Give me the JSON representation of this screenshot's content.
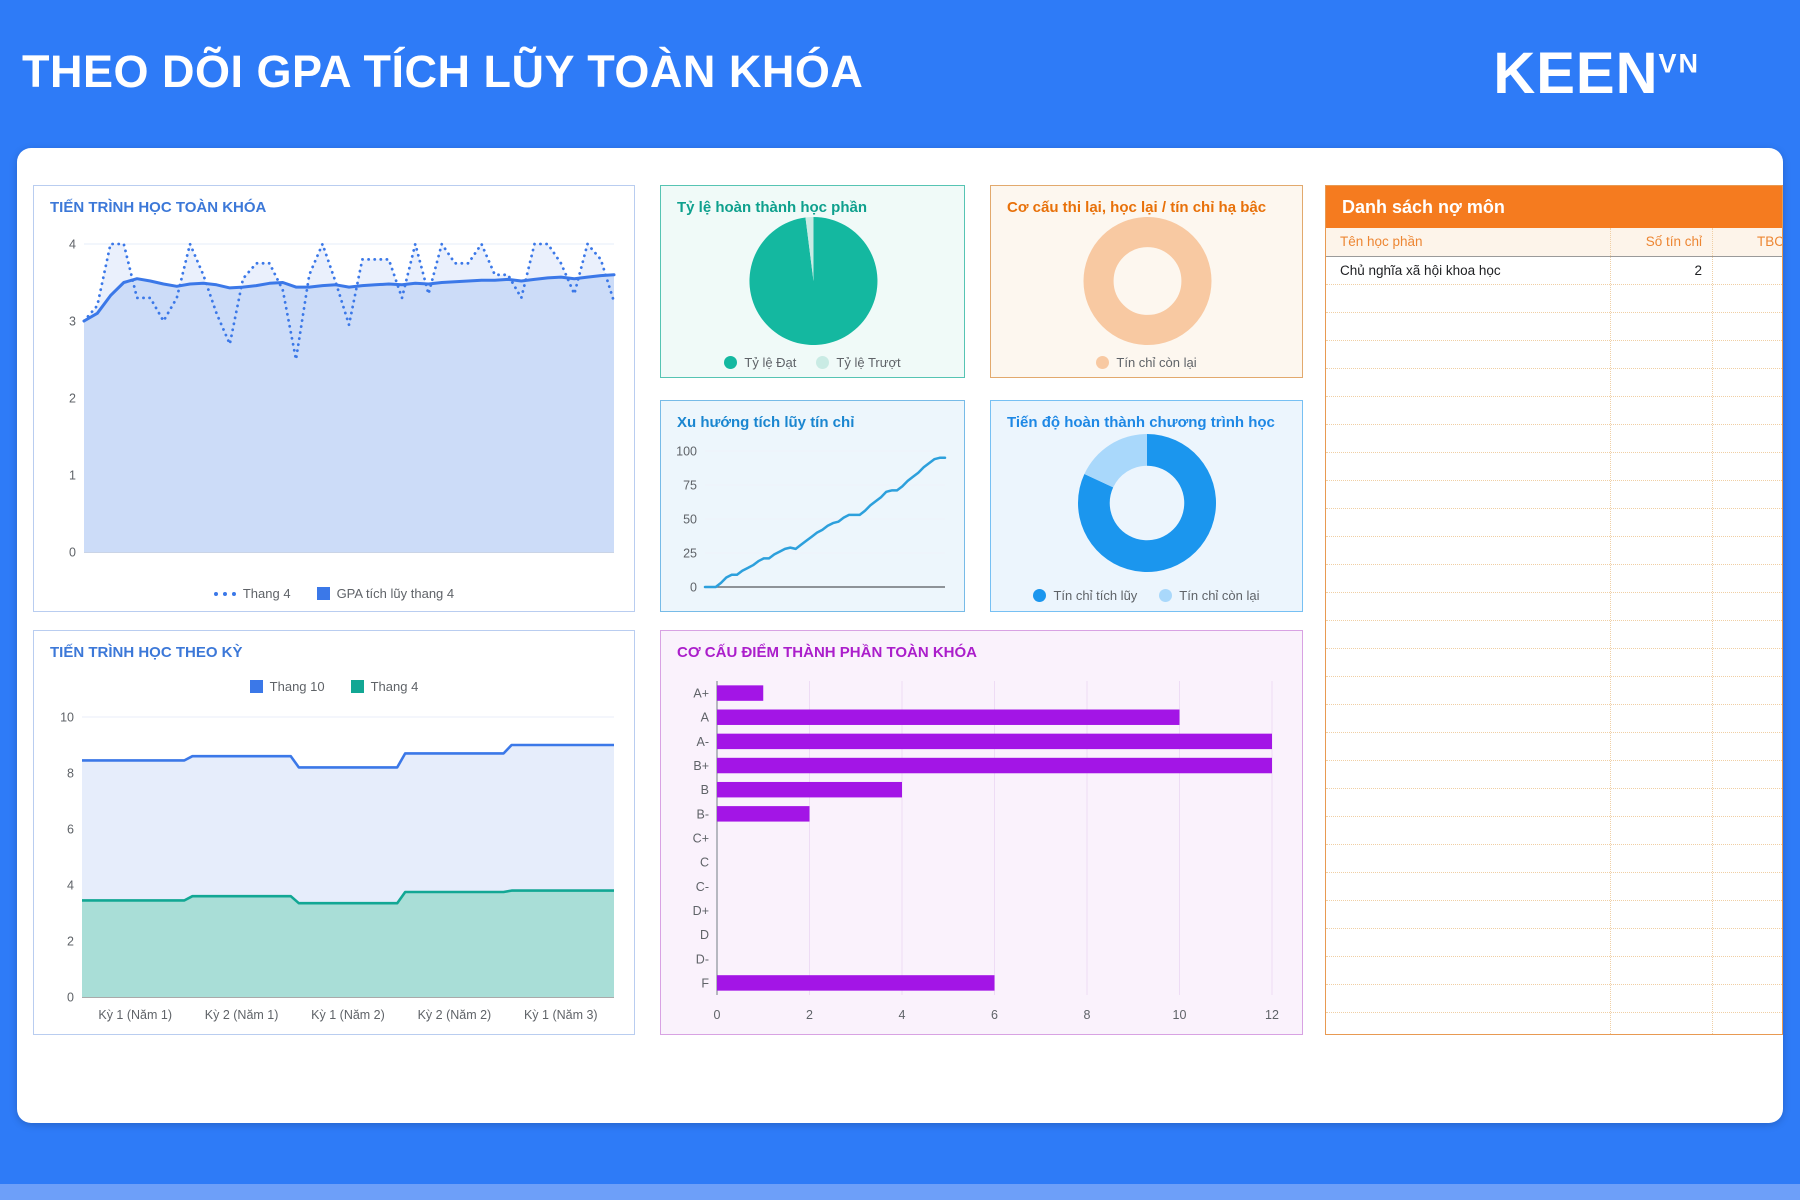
{
  "header": {
    "title": "THEO DÕI GPA TÍCH LŨY TOÀN KHÓA",
    "brand": "KEEN",
    "brand_suffix": "VN"
  },
  "colors": {
    "background": "#2e7bf7",
    "card": "#ffffff",
    "accent_blue": "#3b78e8",
    "accent_teal": "#14b8a0",
    "accent_orange": "#f57b1f",
    "accent_light_blue": "#2da0dc",
    "accent_donut_blue": "#1b96ee",
    "accent_purple": "#a315e6"
  },
  "debt_table": {
    "title": "Danh sách nợ môn",
    "columns": [
      "Tên học phần",
      "Số tín chỉ",
      "TBC"
    ],
    "rows": [
      {
        "name": "Chủ nghĩa xã hội khoa học",
        "credits": "2",
        "tbc": ""
      }
    ],
    "empty_row_count": 28
  },
  "chart_data": [
    {
      "id": "gpa_total",
      "type": "line",
      "title": "TIẾN TRÌNH HỌC TOÀN KHÓA",
      "ylim": [
        0,
        4
      ],
      "yticks": [
        0,
        1,
        2,
        3,
        4
      ],
      "grid": true,
      "legend_position": "bottom",
      "series": [
        {
          "name": "Thang 4",
          "style": "dotted",
          "color": "#3b78e8",
          "fill": "#dfe8fa",
          "fill_opacity": 0.65,
          "values": [
            3.0,
            3.2,
            4.0,
            4.0,
            3.3,
            3.3,
            3.0,
            3.3,
            4.0,
            3.6,
            3.1,
            2.7,
            3.55,
            3.75,
            3.75,
            3.4,
            2.5,
            3.6,
            4.0,
            3.5,
            2.95,
            3.8,
            3.8,
            3.8,
            3.3,
            4.0,
            3.35,
            4.0,
            3.75,
            3.75,
            4.0,
            3.6,
            3.6,
            3.3,
            4.0,
            4.0,
            3.75,
            3.35,
            4.0,
            3.8,
            3.25
          ]
        },
        {
          "name": "GPA tích lũy thang 4",
          "style": "solid",
          "color": "#3b78e8",
          "fill": "#ccdcf8",
          "fill_opacity": 1,
          "values": [
            3.0,
            3.1,
            3.33,
            3.5,
            3.55,
            3.52,
            3.48,
            3.45,
            3.48,
            3.49,
            3.47,
            3.43,
            3.44,
            3.46,
            3.49,
            3.5,
            3.44,
            3.44,
            3.46,
            3.47,
            3.44,
            3.46,
            3.47,
            3.48,
            3.47,
            3.49,
            3.48,
            3.5,
            3.51,
            3.52,
            3.53,
            3.53,
            3.54,
            3.52,
            3.54,
            3.56,
            3.57,
            3.55,
            3.57,
            3.59,
            3.6
          ]
        }
      ]
    },
    {
      "id": "completion_pie",
      "type": "pie",
      "title": "Tỷ lệ hoàn thành học phần",
      "legend_position": "bottom",
      "slices": [
        {
          "label": "Tỷ lệ Đạt",
          "value": 98,
          "color": "#14b8a0"
        },
        {
          "label": "Tỷ lệ Trượt",
          "value": 2,
          "color": "#c9ebe4"
        }
      ]
    },
    {
      "id": "retake_donut",
      "type": "donut",
      "title": "Cơ cấu thi lại, học lại / tín chỉ hạ bậc",
      "legend_position": "bottom",
      "slices": [
        {
          "label": "Tín chỉ còn lại",
          "value": 100,
          "color": "#f8c9a2"
        }
      ]
    },
    {
      "id": "credit_trend",
      "type": "line",
      "title": "Xu hướng tích lũy tín chỉ",
      "ylim": [
        0,
        100
      ],
      "yticks": [
        0,
        25,
        50,
        75,
        100
      ],
      "grid": true,
      "series": [
        {
          "name": "Tín chỉ tích lũy",
          "style": "solid",
          "color": "#2da0dc",
          "width": 2.5,
          "values": [
            0,
            0,
            0,
            3,
            7,
            9,
            9,
            12,
            14,
            16,
            19,
            21,
            21,
            24,
            26,
            28,
            29,
            28,
            31,
            34,
            37,
            40,
            42,
            45,
            47,
            48,
            51,
            53,
            53,
            53,
            56,
            60,
            63,
            66,
            70,
            71,
            71,
            74,
            78,
            81,
            84,
            88,
            91,
            94,
            95,
            95
          ]
        }
      ]
    },
    {
      "id": "program_progress",
      "type": "donut",
      "title": "Tiến độ hoàn thành chương trình học",
      "legend_position": "bottom",
      "slices": [
        {
          "label": "Tín chỉ tích lũy",
          "value": 95,
          "color": "#1b96ee"
        },
        {
          "label": "Tín chỉ còn lại",
          "value": 21,
          "color": "#a9d8fb"
        }
      ]
    },
    {
      "id": "semester_progress",
      "type": "step-area",
      "title": "TIẾN TRÌNH HỌC THEO KỲ",
      "categories": [
        "Kỳ 1 (Năm 1)",
        "Kỳ 2 (Năm 1)",
        "Kỳ 1 (Năm 2)",
        "Kỳ 2 (Năm 2)",
        "Kỳ 1 (Năm 3)"
      ],
      "ylim": [
        0,
        10
      ],
      "yticks": [
        0,
        2,
        4,
        6,
        8,
        10
      ],
      "legend_position": "top",
      "series": [
        {
          "name": "Thang 10",
          "color": "#3b78e8",
          "fill": "#e6edfb",
          "values": [
            8.45,
            8.6,
            8.2,
            8.7,
            9.0
          ]
        },
        {
          "name": "Thang 4",
          "color": "#12a794",
          "fill": "#a9ded7",
          "values": [
            3.45,
            3.6,
            3.35,
            3.75,
            3.8
          ]
        }
      ]
    },
    {
      "id": "grade_distribution",
      "type": "bar-horizontal",
      "title": "CƠ CẤU ĐIỂM THÀNH PHẦN TOÀN KHÓA",
      "categories": [
        "A+",
        "A",
        "A-",
        "B+",
        "B",
        "B-",
        "C+",
        "C",
        "C-",
        "D+",
        "D",
        "D-",
        "F"
      ],
      "values": [
        1,
        10,
        12,
        12,
        4,
        2,
        0,
        0,
        0,
        0,
        0,
        0,
        6
      ],
      "xlim": [
        0,
        12
      ],
      "xticks": [
        0,
        2,
        4,
        6,
        8,
        10,
        12
      ],
      "bar_color": "#a315e6"
    }
  ]
}
